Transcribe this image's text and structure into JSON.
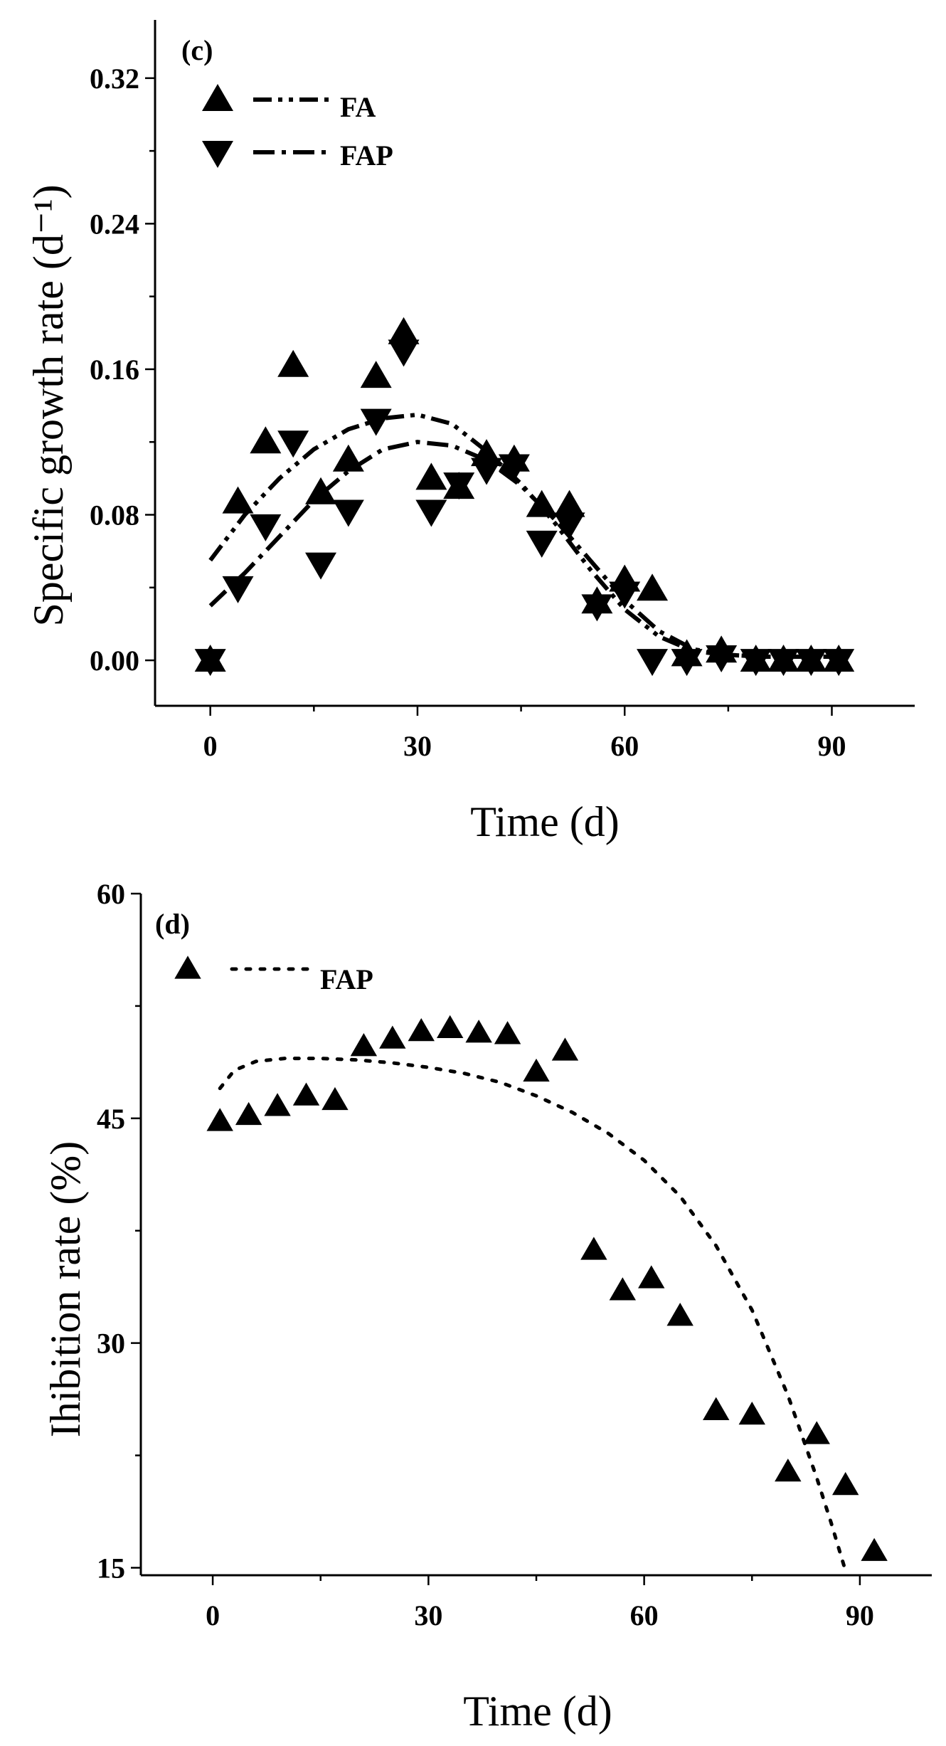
{
  "chart_data": [
    {
      "panel": "(c)",
      "type": "scatter",
      "xlabel": "Time (d)",
      "ylabel": "Specific growth rate (d⁻¹)",
      "xlim": [
        -8,
        102
      ],
      "ylim": [
        -0.025,
        0.352
      ],
      "xticks": [
        0,
        30,
        60,
        90
      ],
      "xtick_labels": [
        "0",
        "30",
        "60",
        "90"
      ],
      "yticks": [
        0.0,
        0.08,
        0.16,
        0.24,
        0.32
      ],
      "ytick_labels": [
        "0.00",
        "0.08",
        "0.16",
        "0.24",
        "0.32"
      ],
      "legend_position": "top-left",
      "series": [
        {
          "name": "FA",
          "marker": "triangle-up",
          "x": [
            0,
            4,
            8,
            12,
            16,
            20,
            24,
            28,
            32,
            36,
            40,
            44,
            48,
            52,
            56,
            60,
            64,
            69,
            74,
            79,
            83,
            87,
            91
          ],
          "y": [
            0.0,
            0.087,
            0.12,
            0.162,
            0.092,
            0.11,
            0.156,
            0.18,
            0.1,
            0.095,
            0.113,
            0.11,
            0.085,
            0.085,
            0.032,
            0.044,
            0.039,
            0.003,
            0.005,
            0.0,
            0.0,
            0.0,
            0.0
          ],
          "fit": {
            "style": "dash-dot-dot",
            "x": [
              0,
              5,
              10,
              15,
              20,
              25,
              30,
              35,
              40,
              45,
              50,
              55,
              60,
              65,
              70,
              75,
              80,
              85,
              90
            ],
            "y": [
              0.055,
              0.08,
              0.1,
              0.116,
              0.127,
              0.133,
              0.135,
              0.13,
              0.115,
              0.097,
              0.075,
              0.05,
              0.028,
              0.013,
              0.005,
              0.003,
              0.002,
              0.002,
              0.002
            ]
          }
        },
        {
          "name": "FAP",
          "marker": "triangle-down",
          "x": [
            0,
            4,
            8,
            12,
            16,
            20,
            24,
            28,
            32,
            36,
            40,
            44,
            48,
            52,
            56,
            60,
            64,
            69,
            74,
            79,
            83,
            87,
            91
          ],
          "y": [
            0.0,
            0.04,
            0.074,
            0.12,
            0.053,
            0.082,
            0.132,
            0.17,
            0.082,
            0.097,
            0.105,
            0.107,
            0.065,
            0.075,
            0.03,
            0.037,
            0.0,
            0.0,
            0.002,
            0.0,
            0.0,
            0.0,
            0.0
          ],
          "fit": {
            "style": "dash-dot",
            "x": [
              0,
              5,
              10,
              15,
              20,
              25,
              30,
              35,
              40,
              45,
              50,
              55,
              60,
              65,
              70,
              75,
              80,
              85,
              90
            ],
            "y": [
              0.03,
              0.048,
              0.068,
              0.088,
              0.104,
              0.116,
              0.12,
              0.118,
              0.11,
              0.096,
              0.077,
              0.055,
              0.033,
              0.016,
              0.006,
              0.003,
              0.002,
              0.002,
              0.002
            ]
          }
        }
      ]
    },
    {
      "panel": "(d)",
      "type": "scatter",
      "xlabel": "Time (d)",
      "ylabel": "Ihibition rate (%)",
      "xlim": [
        -10,
        100
      ],
      "ylim": [
        14.5,
        60
      ],
      "xticks": [
        0,
        30,
        60,
        90
      ],
      "xtick_labels": [
        "0",
        "30",
        "60",
        "90"
      ],
      "yticks": [
        15,
        30,
        45,
        60
      ],
      "ytick_labels": [
        "15",
        "30",
        "45",
        "60"
      ],
      "legend_position": "top-left",
      "series": [
        {
          "name": "FAP",
          "marker": "triangle-up",
          "x": [
            1,
            5,
            9,
            13,
            17,
            21,
            25,
            29,
            33,
            37,
            41,
            45,
            49,
            53,
            57,
            61,
            65,
            70,
            75,
            80,
            84,
            88,
            92
          ],
          "y": [
            44.8,
            45.2,
            45.8,
            46.5,
            46.2,
            49.8,
            50.3,
            50.8,
            51.0,
            50.7,
            50.6,
            48.1,
            49.5,
            36.2,
            33.5,
            34.3,
            31.8,
            25.5,
            25.2,
            21.4,
            23.9,
            20.5,
            16.1
          ],
          "fit": {
            "style": "dotted",
            "x": [
              1,
              3,
              6,
              10,
              15,
              20,
              25,
              30,
              35,
              40,
              45,
              50,
              55,
              60,
              65,
              70,
              75,
              80,
              84,
              86,
              88
            ],
            "y": [
              47.0,
              48.2,
              48.8,
              49.0,
              49.0,
              48.9,
              48.7,
              48.4,
              48.0,
              47.4,
              46.5,
              45.4,
              44.0,
              42.2,
              39.8,
              36.5,
              32.2,
              26.5,
              21.0,
              18.0,
              14.8
            ]
          }
        }
      ]
    }
  ]
}
